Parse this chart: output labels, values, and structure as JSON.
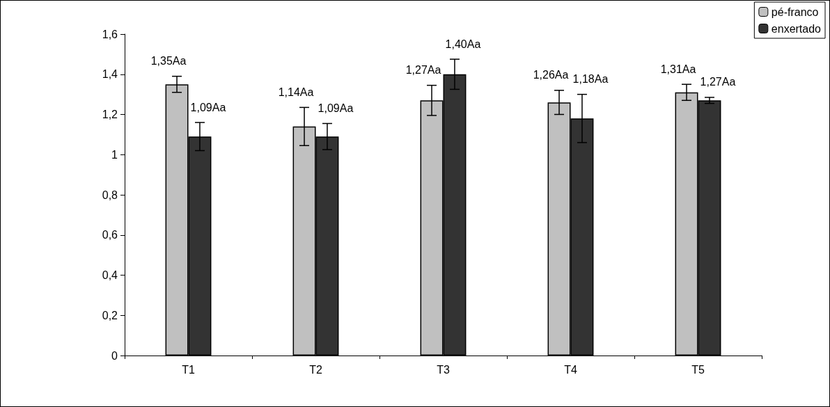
{
  "chart_data": {
    "type": "bar",
    "categories": [
      "T1",
      "T2",
      "T3",
      "T4",
      "T5"
    ],
    "series": [
      {
        "name": "pé-franco",
        "color": "#c0c0c0",
        "values": [
          1.35,
          1.14,
          1.27,
          1.26,
          1.31
        ],
        "errors": [
          0.04,
          0.095,
          0.075,
          0.06,
          0.04
        ],
        "value_labels": [
          "1,35Aa",
          "1,14Aa",
          "1,27Aa",
          "1,26Aa",
          "1,31Aa"
        ]
      },
      {
        "name": "enxertado",
        "color": "#333333",
        "values": [
          1.09,
          1.09,
          1.4,
          1.18,
          1.27
        ],
        "errors": [
          0.07,
          0.065,
          0.075,
          0.12,
          0.015
        ],
        "value_labels": [
          "1,09Aa",
          "1,09Aa",
          "1,40Aa",
          "1,18Aa",
          "1,27Aa"
        ]
      }
    ],
    "ylim": [
      0,
      1.6
    ],
    "yticks": [
      0,
      {
        "value": 0.2,
        "label": "0,2"
      },
      {
        "value": 0.4,
        "label": "0,4"
      },
      {
        "value": 0.6,
        "label": "0,6"
      },
      {
        "value": 0.8,
        "label": "0,8"
      },
      1,
      {
        "value": 1.2,
        "label": "1,2"
      },
      {
        "value": 1.4,
        "label": "1,4"
      },
      {
        "value": 1.6,
        "label": "1,6"
      }
    ],
    "grid": false,
    "legend": "top right"
  }
}
